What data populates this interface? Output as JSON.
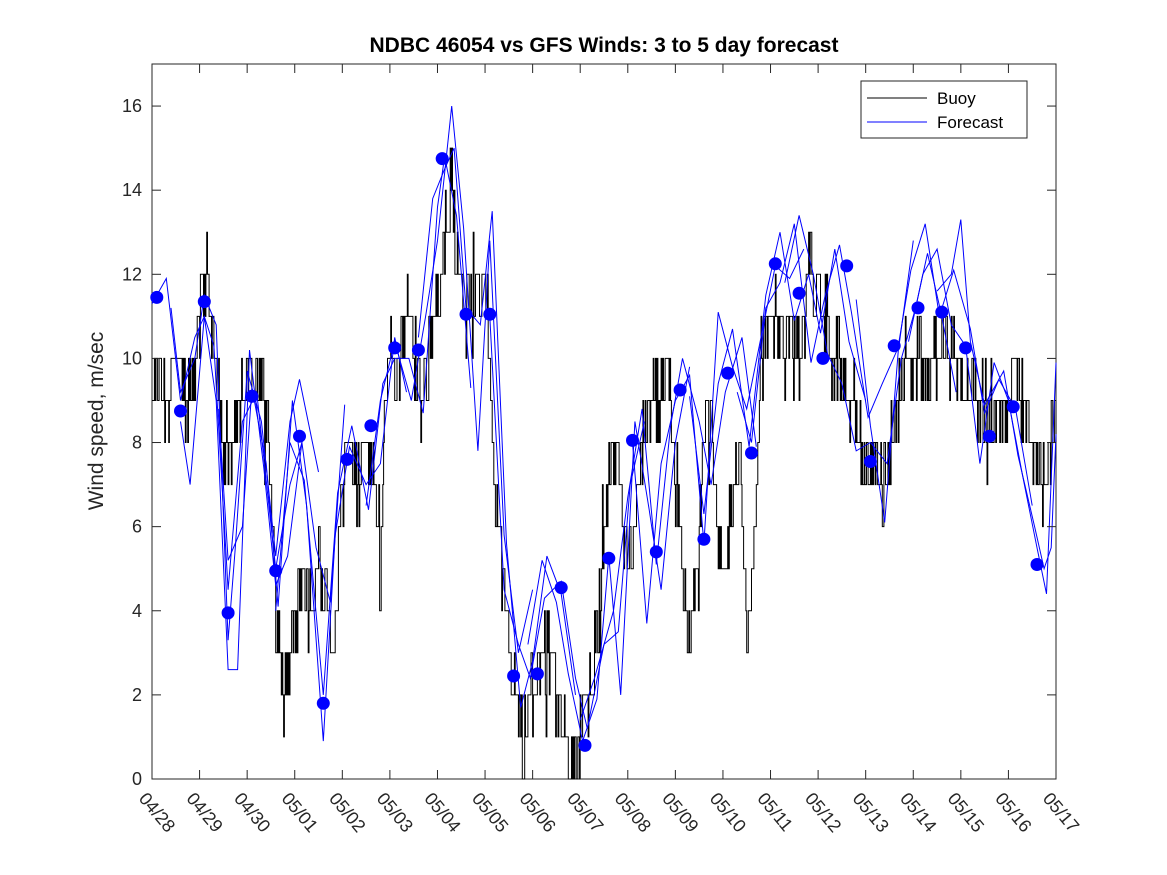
{
  "chart_data": {
    "type": "line",
    "title": "NDBC 46054 vs GFS Winds: 3 to 5 day forecast",
    "xlabel": "",
    "ylabel": "Wind speed, m/sec",
    "ylim": [
      0,
      17
    ],
    "yticks": [
      0,
      2,
      4,
      6,
      8,
      10,
      12,
      14,
      16
    ],
    "xlim": [
      0,
      19
    ],
    "xtick_labels": [
      "04/28",
      "04/29",
      "04/30",
      "05/01",
      "05/02",
      "05/03",
      "05/04",
      "05/05",
      "05/06",
      "05/07",
      "05/08",
      "05/09",
      "05/10",
      "05/11",
      "05/12",
      "05/13",
      "05/14",
      "05/15",
      "05/16",
      "05/17"
    ],
    "x_units": "days since 04/28",
    "grid": false,
    "legend": {
      "position": "top-right",
      "entries": [
        "Buoy",
        "Forecast"
      ]
    },
    "colors": {
      "buoy": "#000000",
      "forecast": "#0000ff",
      "marker": "#0000ff"
    },
    "buoy_anchors": [
      [
        0.0,
        9
      ],
      [
        0.1,
        10
      ],
      [
        0.25,
        9
      ],
      [
        0.5,
        10
      ],
      [
        0.75,
        9
      ],
      [
        0.9,
        10
      ],
      [
        1.0,
        11
      ],
      [
        1.15,
        12
      ],
      [
        1.3,
        10
      ],
      [
        1.5,
        8
      ],
      [
        1.7,
        8
      ],
      [
        1.85,
        9
      ],
      [
        2.0,
        10
      ],
      [
        2.15,
        9
      ],
      [
        2.3,
        10
      ],
      [
        2.45,
        8
      ],
      [
        2.6,
        4
      ],
      [
        2.75,
        2
      ],
      [
        2.9,
        3
      ],
      [
        3.05,
        4
      ],
      [
        3.2,
        5
      ],
      [
        3.35,
        4
      ],
      [
        3.5,
        5
      ],
      [
        3.65,
        4
      ],
      [
        3.8,
        3
      ],
      [
        4.0,
        7
      ],
      [
        4.15,
        8
      ],
      [
        4.3,
        7
      ],
      [
        4.5,
        8
      ],
      [
        4.65,
        7
      ],
      [
        4.8,
        5
      ],
      [
        4.9,
        9
      ],
      [
        5.0,
        10
      ],
      [
        5.2,
        10
      ],
      [
        5.35,
        11
      ],
      [
        5.5,
        10
      ],
      [
        5.65,
        9
      ],
      [
        5.8,
        10
      ],
      [
        6.0,
        11
      ],
      [
        6.15,
        13
      ],
      [
        6.3,
        14
      ],
      [
        6.45,
        12
      ],
      [
        6.6,
        11
      ],
      [
        6.75,
        12
      ],
      [
        6.9,
        11
      ],
      [
        7.0,
        12
      ],
      [
        7.1,
        10
      ],
      [
        7.2,
        7
      ],
      [
        7.35,
        5
      ],
      [
        7.5,
        3
      ],
      [
        7.65,
        2
      ],
      [
        7.8,
        1
      ],
      [
        8.0,
        2
      ],
      [
        8.2,
        3
      ],
      [
        8.35,
        3
      ],
      [
        8.5,
        2
      ],
      [
        8.65,
        1
      ],
      [
        8.8,
        0
      ],
      [
        9.0,
        1
      ],
      [
        9.15,
        2
      ],
      [
        9.3,
        3
      ],
      [
        9.45,
        5
      ],
      [
        9.6,
        7
      ],
      [
        9.75,
        8
      ],
      [
        9.9,
        6
      ],
      [
        10.05,
        5
      ],
      [
        10.2,
        7
      ],
      [
        10.35,
        8
      ],
      [
        10.5,
        9
      ],
      [
        10.7,
        9
      ],
      [
        10.85,
        10
      ],
      [
        11.0,
        7
      ],
      [
        11.15,
        5
      ],
      [
        11.3,
        3
      ],
      [
        11.45,
        5
      ],
      [
        11.6,
        8
      ],
      [
        11.75,
        9
      ],
      [
        11.9,
        6
      ],
      [
        12.05,
        5
      ],
      [
        12.2,
        7
      ],
      [
        12.35,
        8
      ],
      [
        12.5,
        3
      ],
      [
        12.65,
        6
      ],
      [
        12.8,
        10
      ],
      [
        12.95,
        11
      ],
      [
        13.1,
        11
      ],
      [
        13.3,
        10
      ],
      [
        13.45,
        11
      ],
      [
        13.6,
        10
      ],
      [
        13.8,
        12
      ],
      [
        14.0,
        12
      ],
      [
        14.15,
        11
      ],
      [
        14.3,
        10
      ],
      [
        14.45,
        10
      ],
      [
        14.6,
        9
      ],
      [
        14.75,
        9
      ],
      [
        14.9,
        8
      ],
      [
        15.05,
        7
      ],
      [
        15.2,
        8
      ],
      [
        15.35,
        7
      ],
      [
        15.5,
        8
      ],
      [
        15.7,
        9
      ],
      [
        15.85,
        10
      ],
      [
        16.0,
        10
      ],
      [
        16.15,
        10
      ],
      [
        16.3,
        9
      ],
      [
        16.45,
        10
      ],
      [
        16.6,
        10
      ],
      [
        16.75,
        10
      ],
      [
        16.9,
        10
      ],
      [
        17.05,
        9
      ],
      [
        17.2,
        10
      ],
      [
        17.35,
        9
      ],
      [
        17.5,
        9
      ],
      [
        17.65,
        8
      ],
      [
        17.8,
        9
      ],
      [
        17.95,
        8
      ],
      [
        18.1,
        10
      ],
      [
        18.3,
        9
      ],
      [
        18.5,
        8
      ],
      [
        18.7,
        7
      ],
      [
        18.85,
        8
      ],
      [
        19.0,
        8
      ]
    ],
    "forecast_markers": [
      [
        0.1,
        11.45
      ],
      [
        0.6,
        8.75
      ],
      [
        1.1,
        11.35
      ],
      [
        1.6,
        3.95
      ],
      [
        2.1,
        9.1
      ],
      [
        2.6,
        4.95
      ],
      [
        3.1,
        8.15
      ],
      [
        3.6,
        1.8
      ],
      [
        4.1,
        7.6
      ],
      [
        4.6,
        8.4
      ],
      [
        5.1,
        10.25
      ],
      [
        5.6,
        10.2
      ],
      [
        6.1,
        14.75
      ],
      [
        6.6,
        11.05
      ],
      [
        7.1,
        11.05
      ],
      [
        7.6,
        2.45
      ],
      [
        8.1,
        2.5
      ],
      [
        8.6,
        4.55
      ],
      [
        9.1,
        0.8
      ],
      [
        9.6,
        5.25
      ],
      [
        10.1,
        8.05
      ],
      [
        10.6,
        5.4
      ],
      [
        11.1,
        9.25
      ],
      [
        11.6,
        5.7
      ],
      [
        12.1,
        9.65
      ],
      [
        12.6,
        7.75
      ],
      [
        13.1,
        12.25
      ],
      [
        13.6,
        11.55
      ],
      [
        14.1,
        10.0
      ],
      [
        14.6,
        12.2
      ],
      [
        15.1,
        7.55
      ],
      [
        15.6,
        10.3
      ],
      [
        16.1,
        11.2
      ],
      [
        16.6,
        11.1
      ],
      [
        17.1,
        10.25
      ],
      [
        17.6,
        8.15
      ],
      [
        18.1,
        8.85
      ],
      [
        18.6,
        5.1
      ]
    ],
    "forecast_runs": [
      [
        [
          0.0,
          11.3
        ],
        [
          0.3,
          11.9
        ],
        [
          0.6,
          9.0
        ],
        [
          0.9,
          10.5
        ],
        [
          1.1,
          11.0
        ],
        [
          1.3,
          10.3
        ],
        [
          1.6,
          4.5
        ],
        [
          1.9,
          8.5
        ],
        [
          2.2,
          9.2
        ],
        [
          2.6,
          5.0
        ],
        [
          2.9,
          7.0
        ],
        [
          3.2,
          8.2
        ]
      ],
      [
        [
          0.4,
          11.2
        ],
        [
          0.6,
          9.2
        ],
        [
          0.9,
          10.0
        ],
        [
          1.1,
          11.5
        ],
        [
          1.35,
          10.8
        ],
        [
          1.6,
          3.3
        ],
        [
          1.75,
          5.5
        ],
        [
          2.0,
          9.7
        ],
        [
          2.3,
          8.5
        ],
        [
          2.6,
          5.3
        ],
        [
          2.9,
          8.5
        ],
        [
          3.1,
          9.5
        ],
        [
          3.5,
          7.3
        ]
      ],
      [
        [
          0.6,
          8.5
        ],
        [
          0.8,
          7.0
        ],
        [
          1.1,
          11.0
        ],
        [
          1.35,
          9.0
        ],
        [
          1.6,
          2.6
        ],
        [
          1.8,
          2.6
        ],
        [
          2.05,
          10.2
        ],
        [
          2.35,
          7.4
        ],
        [
          2.6,
          4.6
        ],
        [
          2.85,
          5.3
        ],
        [
          3.15,
          8.0
        ],
        [
          3.45,
          5.5
        ],
        [
          3.75,
          4.2
        ],
        [
          4.05,
          8.9
        ]
      ],
      [
        [
          1.4,
          8.8
        ],
        [
          1.6,
          5.2
        ],
        [
          1.9,
          6.0
        ],
        [
          2.1,
          9.3
        ],
        [
          2.4,
          7.5
        ],
        [
          2.65,
          4.1
        ],
        [
          2.95,
          9.0
        ],
        [
          3.25,
          6.5
        ],
        [
          3.6,
          0.9
        ],
        [
          3.85,
          5.8
        ],
        [
          4.15,
          7.9
        ],
        [
          4.5,
          7.0
        ],
        [
          4.8,
          7.5
        ],
        [
          5.1,
          10.5
        ],
        [
          5.35,
          9.2
        ]
      ],
      [
        [
          2.6,
          4.0
        ],
        [
          2.9,
          8.0
        ],
        [
          3.2,
          7.1
        ],
        [
          3.6,
          2.0
        ],
        [
          3.9,
          6.8
        ],
        [
          4.2,
          8.4
        ],
        [
          4.55,
          6.4
        ],
        [
          4.85,
          9.4
        ],
        [
          5.1,
          10.0
        ],
        [
          5.4,
          10.0
        ],
        [
          5.7,
          8.7
        ],
        [
          6.0,
          13.6
        ],
        [
          6.15,
          14.8
        ],
        [
          6.4,
          13.4
        ],
        [
          6.7,
          9.3
        ]
      ],
      [
        [
          4.5,
          6.5
        ],
        [
          4.8,
          9.0
        ],
        [
          5.1,
          10.4
        ],
        [
          5.45,
          9.0
        ],
        [
          5.75,
          11.0
        ],
        [
          6.0,
          12.8
        ],
        [
          6.3,
          16.0
        ],
        [
          6.55,
          13.1
        ],
        [
          6.85,
          7.8
        ],
        [
          7.1,
          12.8
        ],
        [
          7.4,
          5.8
        ],
        [
          7.7,
          3.0
        ],
        [
          8.0,
          4.5
        ]
      ],
      [
        [
          5.6,
          10.5
        ],
        [
          5.9,
          13.8
        ],
        [
          6.15,
          14.5
        ],
        [
          6.35,
          15.0
        ],
        [
          6.6,
          11.2
        ],
        [
          6.9,
          10.8
        ],
        [
          7.15,
          13.5
        ],
        [
          7.45,
          5.6
        ],
        [
          7.75,
          1.7
        ],
        [
          8.0,
          2.8
        ],
        [
          8.3,
          5.3
        ],
        [
          8.6,
          4.4
        ],
        [
          8.9,
          2.0
        ]
      ],
      [
        [
          7.1,
          11.0
        ],
        [
          7.4,
          4.5
        ],
        [
          7.7,
          3.2
        ],
        [
          7.95,
          2.4
        ],
        [
          8.25,
          4.3
        ],
        [
          8.6,
          4.7
        ],
        [
          8.9,
          2.4
        ],
        [
          9.15,
          1.2
        ],
        [
          9.5,
          3.2
        ],
        [
          9.8,
          3.5
        ],
        [
          10.05,
          7.0
        ],
        [
          10.35,
          8.5
        ]
      ],
      [
        [
          7.9,
          3.2
        ],
        [
          8.2,
          5.2
        ],
        [
          8.5,
          4.2
        ],
        [
          8.75,
          2.5
        ],
        [
          9.05,
          0.9
        ],
        [
          9.35,
          1.9
        ],
        [
          9.6,
          5.3
        ],
        [
          9.85,
          2.0
        ],
        [
          10.15,
          8.5
        ],
        [
          10.45,
          6.4
        ],
        [
          10.7,
          4.5
        ],
        [
          11.0,
          8.0
        ],
        [
          11.3,
          9.8
        ]
      ],
      [
        [
          9.0,
          1.4
        ],
        [
          9.3,
          2.4
        ],
        [
          9.7,
          4.0
        ],
        [
          10.0,
          6.7
        ],
        [
          10.3,
          8.8
        ],
        [
          10.6,
          5.1
        ],
        [
          10.9,
          8.4
        ],
        [
          11.15,
          10.0
        ],
        [
          11.5,
          8.5
        ],
        [
          11.75,
          7.0
        ],
        [
          12.05,
          9.2
        ],
        [
          12.4,
          10.5
        ],
        [
          12.7,
          7.9
        ]
      ],
      [
        [
          10.1,
          8.0
        ],
        [
          10.4,
          3.7
        ],
        [
          10.7,
          7.5
        ],
        [
          11.0,
          9.0
        ],
        [
          11.3,
          9.6
        ],
        [
          11.6,
          5.6
        ],
        [
          11.9,
          11.1
        ],
        [
          12.2,
          9.8
        ],
        [
          12.5,
          8.8
        ],
        [
          12.8,
          10.5
        ],
        [
          13.1,
          12.2
        ],
        [
          13.4,
          11.9
        ],
        [
          13.7,
          12.6
        ]
      ],
      [
        [
          11.3,
          9.1
        ],
        [
          11.6,
          6.3
        ],
        [
          11.9,
          9.4
        ],
        [
          12.2,
          10.7
        ],
        [
          12.55,
          7.9
        ],
        [
          12.9,
          11.5
        ],
        [
          13.2,
          13.0
        ],
        [
          13.5,
          10.9
        ],
        [
          13.8,
          12.0
        ],
        [
          14.05,
          10.6
        ],
        [
          14.35,
          12.6
        ],
        [
          14.65,
          10.4
        ],
        [
          15.0,
          9.0
        ]
      ],
      [
        [
          12.3,
          9.2
        ],
        [
          12.6,
          8.0
        ],
        [
          12.9,
          11.2
        ],
        [
          13.2,
          11.8
        ],
        [
          13.5,
          13.2
        ],
        [
          13.85,
          9.9
        ],
        [
          14.15,
          11.5
        ],
        [
          14.45,
          12.7
        ],
        [
          14.7,
          11.1
        ],
        [
          15.05,
          8.6
        ],
        [
          15.35,
          9.4
        ],
        [
          15.7,
          10.3
        ],
        [
          16.0,
          12.8
        ]
      ],
      [
        [
          13.3,
          11.8
        ],
        [
          13.6,
          13.4
        ],
        [
          13.9,
          12.0
        ],
        [
          14.2,
          10.1
        ],
        [
          14.5,
          9.4
        ],
        [
          14.8,
          7.8
        ],
        [
          15.1,
          8.0
        ],
        [
          15.45,
          7.5
        ],
        [
          15.75,
          10.0
        ],
        [
          16.05,
          11.2
        ],
        [
          16.3,
          12.5
        ],
        [
          16.6,
          11.0
        ],
        [
          16.9,
          9.2
        ]
      ],
      [
        [
          14.8,
          11.4
        ],
        [
          15.1,
          8.4
        ],
        [
          15.4,
          6.1
        ],
        [
          15.7,
          10.4
        ],
        [
          15.95,
          12.1
        ],
        [
          16.25,
          13.2
        ],
        [
          16.55,
          11.0
        ],
        [
          16.85,
          12.1
        ],
        [
          17.2,
          10.7
        ],
        [
          17.5,
          8.7
        ],
        [
          17.8,
          9.5
        ],
        [
          18.15,
          8.8
        ],
        [
          18.5,
          6.5
        ]
      ],
      [
        [
          15.9,
          10.4
        ],
        [
          16.2,
          12.0
        ],
        [
          16.5,
          12.6
        ],
        [
          16.8,
          10.8
        ],
        [
          17.1,
          10.3
        ],
        [
          17.4,
          7.5
        ],
        [
          17.7,
          9.9
        ],
        [
          18.0,
          9.0
        ],
        [
          18.3,
          7.2
        ],
        [
          18.6,
          5.5
        ],
        [
          18.8,
          4.4
        ],
        [
          19.0,
          9.9
        ]
      ],
      [
        [
          16.5,
          11.6
        ],
        [
          16.8,
          12.0
        ],
        [
          17.0,
          13.3
        ],
        [
          17.2,
          10.4
        ],
        [
          17.5,
          8.9
        ],
        [
          17.9,
          9.7
        ],
        [
          18.2,
          7.7
        ],
        [
          18.55,
          6.0
        ],
        [
          18.75,
          5.0
        ],
        [
          18.9,
          5.5
        ],
        [
          19.0,
          8.2
        ]
      ]
    ]
  }
}
